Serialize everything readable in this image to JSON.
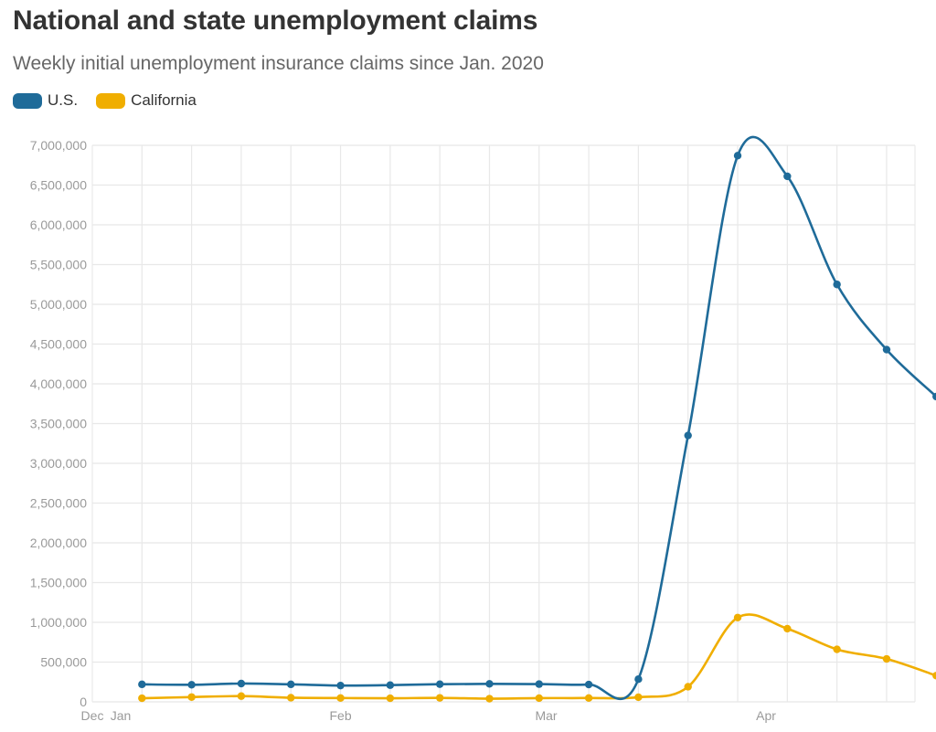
{
  "header": {
    "title": "National and state unemployment claims",
    "subtitle": "Weekly initial unemployment insurance claims since Jan. 2020"
  },
  "colors": {
    "us": "#1f6b99",
    "california": "#f0ae00",
    "grid": "#e8e8e8",
    "tick": "#9a9a9a"
  },
  "chart_data": {
    "type": "line",
    "title": "National and state unemployment claims",
    "subtitle": "Weekly initial unemployment insurance claims since Jan. 2020",
    "xlabel": "",
    "ylabel": "",
    "x_range": [
      "2019-12-28",
      "2020-04-22"
    ],
    "ylim": [
      0,
      7000000
    ],
    "yticks": [
      0,
      500000,
      1000000,
      1500000,
      2000000,
      2500000,
      3000000,
      3500000,
      4000000,
      4500000,
      5000000,
      5500000,
      6000000,
      6500000,
      7000000
    ],
    "ytick_labels": [
      "0",
      "500,000",
      "1,000,000",
      "1,500,000",
      "2,000,000",
      "2,500,000",
      "3,000,000",
      "3,500,000",
      "4,000,000",
      "4,500,000",
      "5,000,000",
      "5,500,000",
      "6,000,000",
      "6,500,000",
      "7,000,000"
    ],
    "xtick_labels": [
      {
        "date": "2019-12-28",
        "label": "Dec"
      },
      {
        "date": "2020-01-01",
        "label": "Jan"
      },
      {
        "date": "2020-02-01",
        "label": "Feb"
      },
      {
        "date": "2020-03-01",
        "label": "Mar"
      },
      {
        "date": "2020-04-01",
        "label": "Apr"
      }
    ],
    "grid": true,
    "legend": "top-left",
    "series": [
      {
        "name": "U.S.",
        "color": "#1f6b99",
        "points": [
          {
            "x": "2020-01-04",
            "y": 220000
          },
          {
            "x": "2020-01-11",
            "y": 215000
          },
          {
            "x": "2020-01-18",
            "y": 230000
          },
          {
            "x": "2020-01-25",
            "y": 220000
          },
          {
            "x": "2020-02-01",
            "y": 205000
          },
          {
            "x": "2020-02-08",
            "y": 210000
          },
          {
            "x": "2020-02-15",
            "y": 222000
          },
          {
            "x": "2020-02-22",
            "y": 226000
          },
          {
            "x": "2020-02-29",
            "y": 223000
          },
          {
            "x": "2020-03-07",
            "y": 218000
          },
          {
            "x": "2020-03-14",
            "y": 285000
          },
          {
            "x": "2020-03-21",
            "y": 3350000
          },
          {
            "x": "2020-03-28",
            "y": 6870000
          },
          {
            "x": "2020-04-04",
            "y": 6610000
          },
          {
            "x": "2020-04-11",
            "y": 5250000
          },
          {
            "x": "2020-04-18",
            "y": 4430000
          },
          {
            "x": "2020-04-25",
            "y": 3840000
          }
        ]
      },
      {
        "name": "California",
        "color": "#f0ae00",
        "points": [
          {
            "x": "2020-01-04",
            "y": 45000
          },
          {
            "x": "2020-01-11",
            "y": 60000
          },
          {
            "x": "2020-01-18",
            "y": 72000
          },
          {
            "x": "2020-01-25",
            "y": 52000
          },
          {
            "x": "2020-02-01",
            "y": 48000
          },
          {
            "x": "2020-02-08",
            "y": 45000
          },
          {
            "x": "2020-02-15",
            "y": 50000
          },
          {
            "x": "2020-02-22",
            "y": 40000
          },
          {
            "x": "2020-02-29",
            "y": 47000
          },
          {
            "x": "2020-03-07",
            "y": 48000
          },
          {
            "x": "2020-03-14",
            "y": 58000
          },
          {
            "x": "2020-03-21",
            "y": 190000
          },
          {
            "x": "2020-03-28",
            "y": 1060000
          },
          {
            "x": "2020-04-04",
            "y": 920000
          },
          {
            "x": "2020-04-11",
            "y": 660000
          },
          {
            "x": "2020-04-18",
            "y": 540000
          },
          {
            "x": "2020-04-25",
            "y": 330000
          }
        ]
      }
    ]
  }
}
